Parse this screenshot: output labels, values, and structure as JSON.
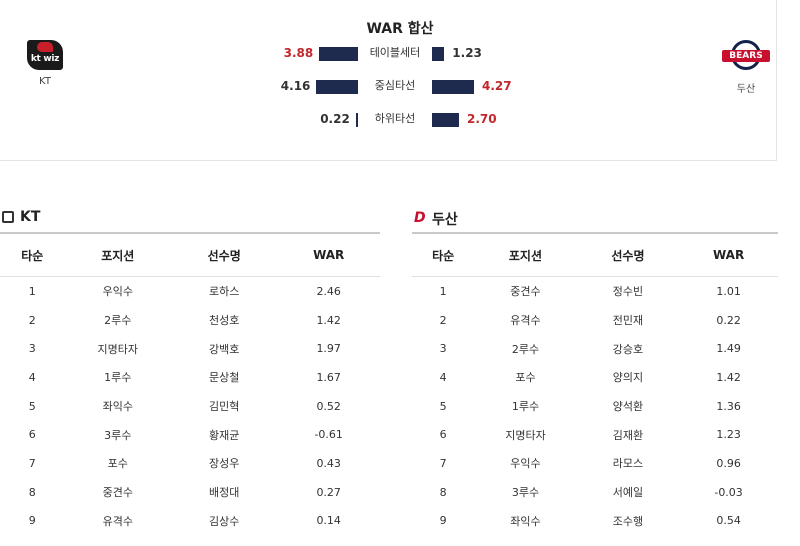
{
  "summary": {
    "title": "WAR 합산",
    "away_team": {
      "name": "KT",
      "logo_text": "kt wiz"
    },
    "home_team": {
      "name": "두산",
      "logo_text": "BEARS"
    },
    "rows": [
      {
        "label": "테이블세터",
        "left": "3.88",
        "right": "1.23",
        "left_value": 3.88,
        "right_value": 1.23,
        "higher": "left"
      },
      {
        "label": "중심타선",
        "left": "4.16",
        "right": "4.27",
        "left_value": 4.16,
        "right_value": 4.27,
        "higher": "right"
      },
      {
        "label": "하위타선",
        "left": "0.22",
        "right": "2.70",
        "left_value": 0.22,
        "right_value": 2.7,
        "higher": "right"
      }
    ],
    "colors": {
      "bar": "#1e2a4e",
      "highlight": "#c1272d"
    }
  },
  "kt": {
    "title": "KT",
    "headers": [
      "타순",
      "포지션",
      "선수명",
      "WAR"
    ],
    "rows": [
      [
        "1",
        "우익수",
        "로하스",
        "2.46"
      ],
      [
        "2",
        "2루수",
        "천성호",
        "1.42"
      ],
      [
        "3",
        "지명타자",
        "강백호",
        "1.97"
      ],
      [
        "4",
        "1루수",
        "문상철",
        "1.67"
      ],
      [
        "5",
        "좌익수",
        "김민혁",
        "0.52"
      ],
      [
        "6",
        "3루수",
        "황재균",
        "-0.61"
      ],
      [
        "7",
        "포수",
        "장성우",
        "0.43"
      ],
      [
        "8",
        "중견수",
        "배정대",
        "0.27"
      ],
      [
        "9",
        "유격수",
        "김상수",
        "0.14"
      ]
    ]
  },
  "doosan": {
    "title": "두산",
    "headers": [
      "타순",
      "포지션",
      "선수명",
      "WAR"
    ],
    "rows": [
      [
        "1",
        "중견수",
        "정수빈",
        "1.01"
      ],
      [
        "2",
        "유격수",
        "전민재",
        "0.22"
      ],
      [
        "3",
        "2루수",
        "강승호",
        "1.49"
      ],
      [
        "4",
        "포수",
        "양의지",
        "1.42"
      ],
      [
        "5",
        "1루수",
        "양석환",
        "1.36"
      ],
      [
        "6",
        "지명타자",
        "김재환",
        "1.23"
      ],
      [
        "7",
        "우익수",
        "라모스",
        "0.96"
      ],
      [
        "8",
        "3루수",
        "서예일",
        "-0.03"
      ],
      [
        "9",
        "좌익수",
        "조수행",
        "0.54"
      ]
    ]
  }
}
